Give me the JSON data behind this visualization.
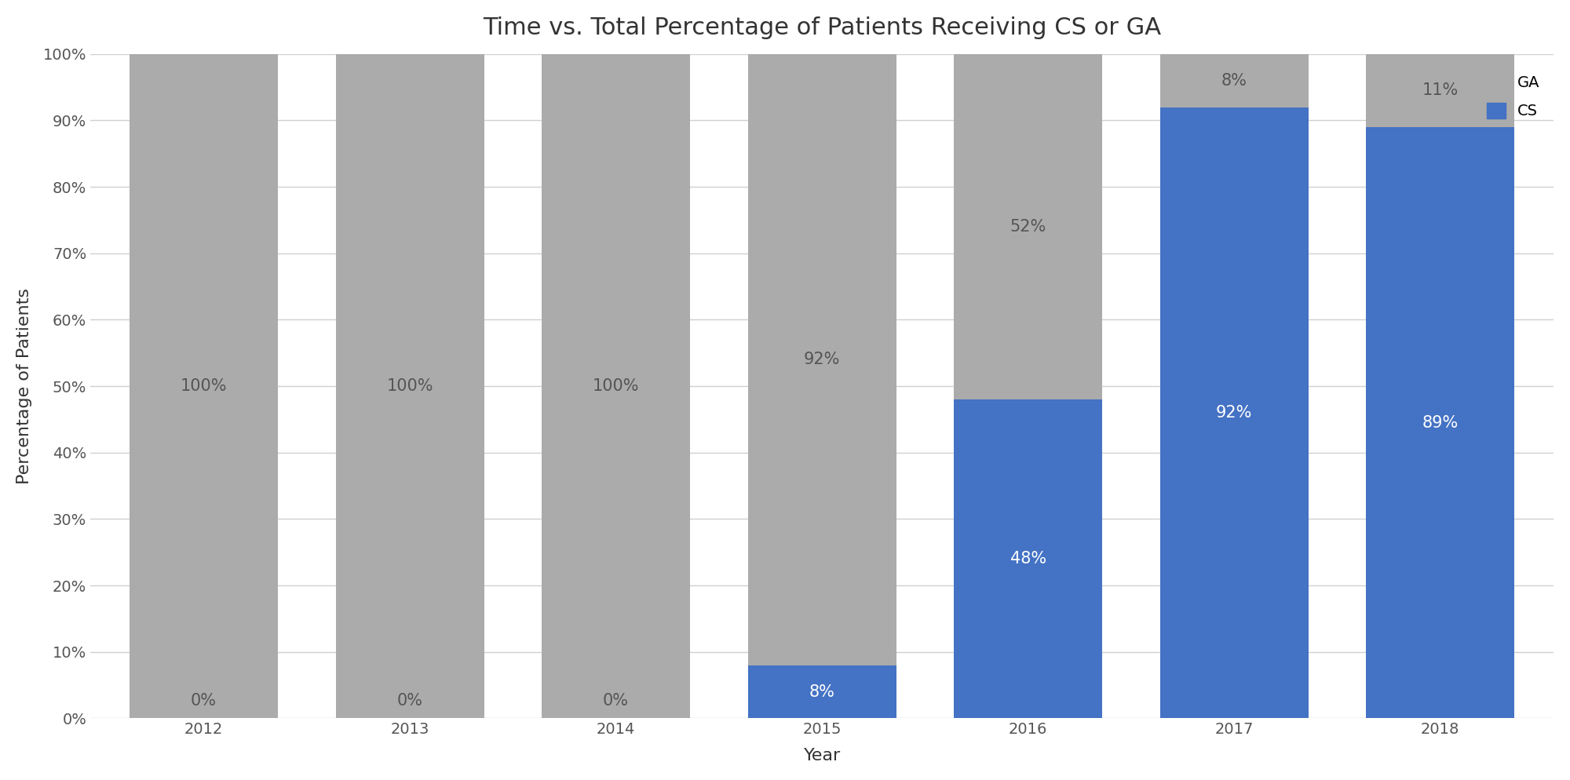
{
  "title": "Time vs. Total Percentage of Patients Receiving CS or GA",
  "xlabel": "Year",
  "ylabel": "Percentage of Patients",
  "years": [
    "2012",
    "2013",
    "2014",
    "2015",
    "2016",
    "2017",
    "2018"
  ],
  "cs_values": [
    0,
    0,
    0,
    8,
    48,
    92,
    89
  ],
  "ga_values": [
    100,
    100,
    100,
    92,
    52,
    8,
    11
  ],
  "cs_color": "#4472C4",
  "ga_color": "#ABABAB",
  "background_color": "#FFFFFF",
  "cs_labels": [
    "0%",
    "0%",
    "0%",
    "8%",
    "48%",
    "92%",
    "89%"
  ],
  "ga_labels": [
    "100%",
    "100%",
    "100%",
    "92%",
    "52%",
    "8%",
    "11%"
  ],
  "yticks": [
    0,
    10,
    20,
    30,
    40,
    50,
    60,
    70,
    80,
    90,
    100
  ],
  "ytick_labels": [
    "0%",
    "10%",
    "20%",
    "30%",
    "40%",
    "50%",
    "60%",
    "70%",
    "80%",
    "90%",
    "100%"
  ],
  "title_fontsize": 22,
  "label_fontsize": 16,
  "tick_fontsize": 14,
  "bar_label_fontsize": 15,
  "legend_fontsize": 14,
  "bar_width": 0.72
}
